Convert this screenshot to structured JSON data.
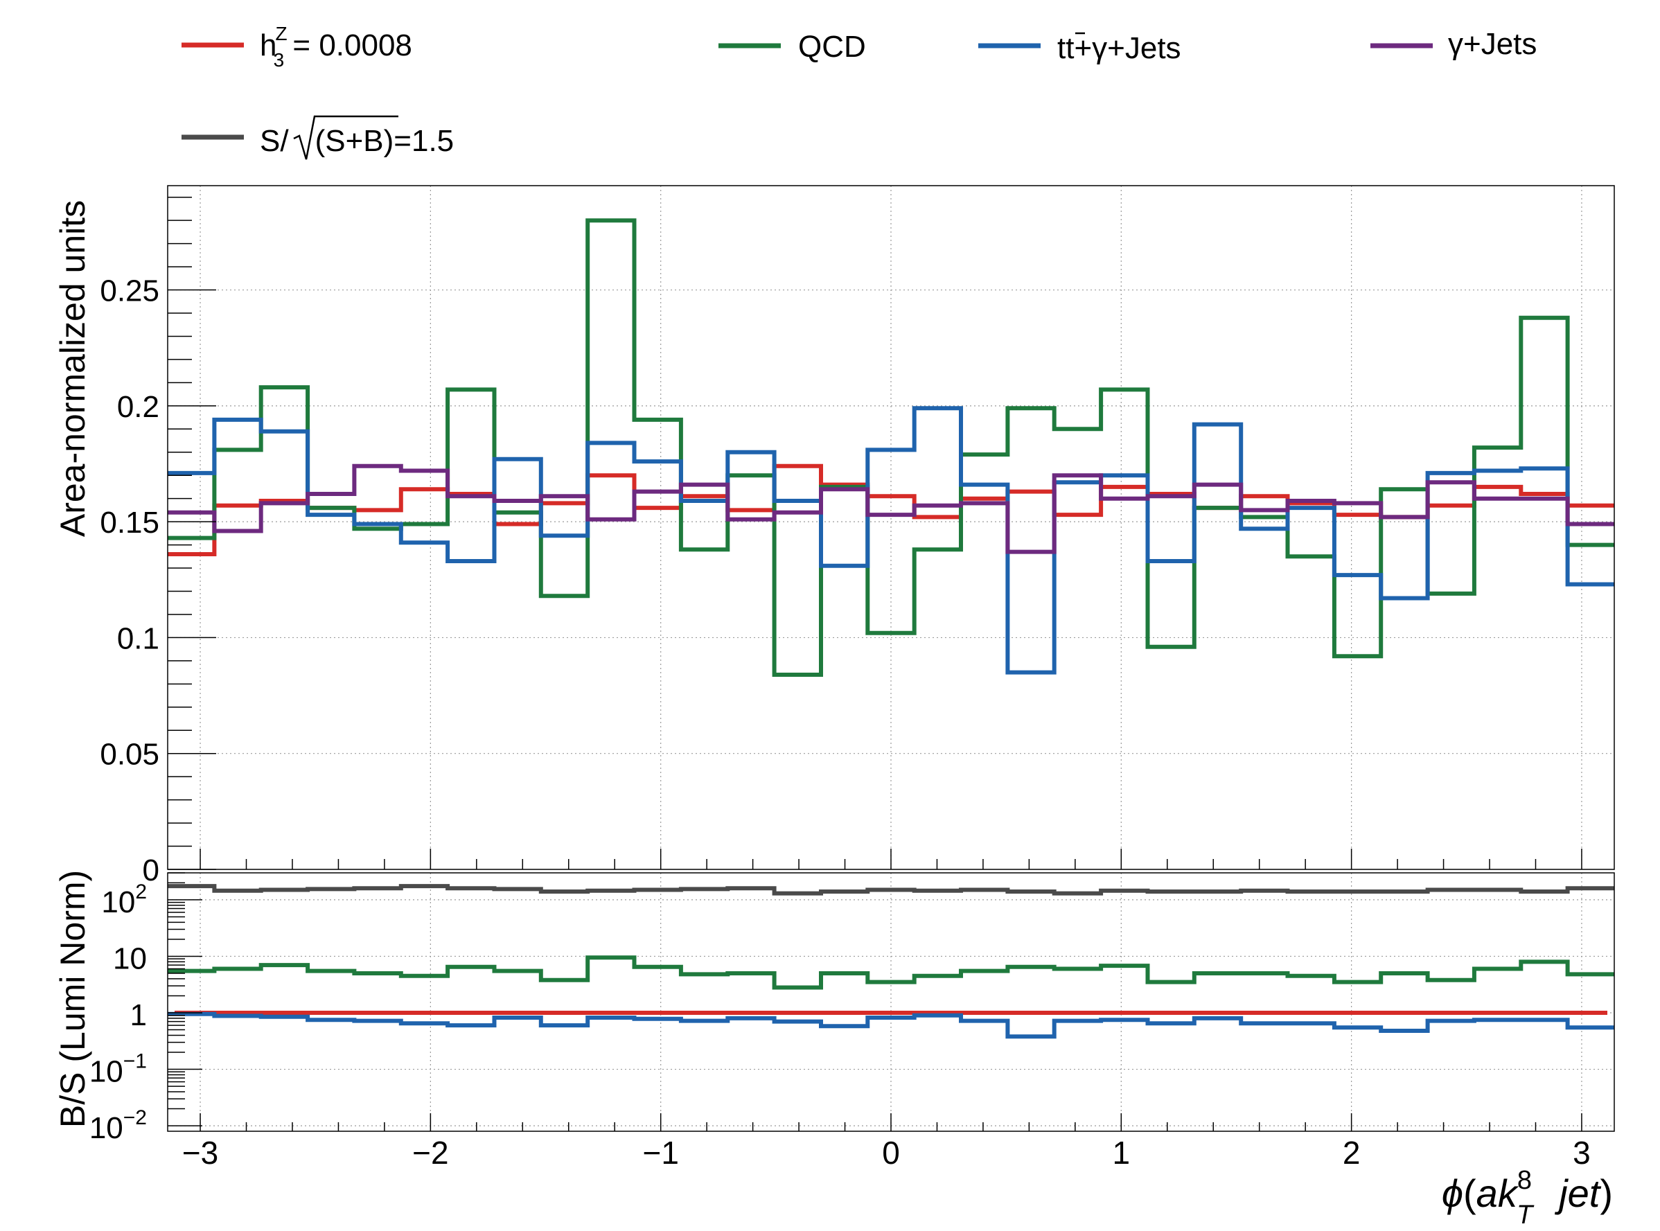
{
  "colors": {
    "signal": "#d62b27",
    "qcd": "#1f7a3d",
    "ttgamma": "#1f63ad",
    "gammajets": "#6d2a7f",
    "significance": "#4a4a4a"
  },
  "legend": {
    "signal": {
      "sym": "h",
      "sup": "Z",
      "sub": "3",
      "rest": " = 0.0008"
    },
    "qcd": "QCD",
    "ttgamma": {
      "tt": "tt",
      "rest": "+γ+Jets"
    },
    "gammajets": "γ+Jets",
    "significance": {
      "pre": "S/",
      "rad": "(S+B)",
      "post": "=1.5"
    }
  },
  "chart_data": [
    {
      "type": "line",
      "style": "step-histogram",
      "ylabel": "Area-normalized units",
      "xlim": [
        -3.14159,
        3.14159
      ],
      "ylim": [
        0,
        0.295
      ],
      "grid": true,
      "legend_placement": "top",
      "x_ticks": [
        -3,
        -2,
        -1,
        0,
        1,
        2,
        3
      ],
      "y_ticks": [
        0,
        0.05,
        0.1,
        0.15,
        0.2,
        0.25
      ],
      "y_tick_labels": [
        "0",
        "0.05",
        "0.1",
        "0.15",
        "0.2",
        "0.25"
      ],
      "n_bins": 31,
      "series": [
        {
          "name": "h3Z = 0.0008",
          "key": "signal",
          "values": [
            0.136,
            0.157,
            0.159,
            0.156,
            0.155,
            0.164,
            0.162,
            0.149,
            0.158,
            0.17,
            0.156,
            0.161,
            0.155,
            0.174,
            0.166,
            0.161,
            0.152,
            0.16,
            0.163,
            0.153,
            0.165,
            0.162,
            0.156,
            0.161,
            0.158,
            0.153,
            0.152,
            0.157,
            0.165,
            0.162,
            0.157
          ]
        },
        {
          "name": "QCD",
          "key": "qcd",
          "values": [
            0.143,
            0.181,
            0.208,
            0.156,
            0.147,
            0.149,
            0.207,
            0.154,
            0.118,
            0.28,
            0.194,
            0.138,
            0.17,
            0.084,
            0.165,
            0.102,
            0.138,
            0.179,
            0.199,
            0.19,
            0.207,
            0.096,
            0.156,
            0.152,
            0.135,
            0.092,
            0.164,
            0.119,
            0.182,
            0.238,
            0.14
          ]
        },
        {
          "name": "tt+γ+Jets",
          "key": "ttgamma",
          "values": [
            0.171,
            0.194,
            0.189,
            0.153,
            0.149,
            0.141,
            0.133,
            0.177,
            0.144,
            0.184,
            0.176,
            0.159,
            0.18,
            0.159,
            0.131,
            0.181,
            0.199,
            0.166,
            0.085,
            0.167,
            0.17,
            0.133,
            0.192,
            0.147,
            0.156,
            0.127,
            0.117,
            0.171,
            0.172,
            0.173,
            0.123
          ]
        },
        {
          "name": "γ+Jets",
          "key": "gammajets",
          "values": [
            0.154,
            0.146,
            0.158,
            0.162,
            0.174,
            0.172,
            0.161,
            0.159,
            0.161,
            0.151,
            0.163,
            0.166,
            0.151,
            0.154,
            0.164,
            0.153,
            0.157,
            0.158,
            0.137,
            0.17,
            0.16,
            0.161,
            0.166,
            0.155,
            0.159,
            0.158,
            0.152,
            0.167,
            0.16,
            0.16,
            0.149
          ]
        }
      ]
    },
    {
      "type": "line",
      "style": "step-histogram",
      "ylabel": "B/S (Lumi Norm)",
      "xlabel": {
        "phi": "ϕ",
        "open": "(",
        "ak": "ak",
        "sup": "8",
        "sub": "T",
        "jet": "jet",
        "close": ")"
      },
      "xlim": [
        -3.14159,
        3.14159
      ],
      "ylim": [
        0.008,
        300
      ],
      "log_y": true,
      "grid": true,
      "x_ticks": [
        -3,
        -2,
        -1,
        0,
        1,
        2,
        3
      ],
      "x_tick_labels": [
        "−3",
        "−2",
        "−1",
        "0",
        "1",
        "2",
        "3"
      ],
      "y_ticks": [
        {
          "value": 0.01,
          "base": "10",
          "exp": "−2"
        },
        {
          "value": 0.1,
          "base": "10",
          "exp": "−1"
        },
        {
          "value": 1,
          "base": "1",
          "exp": ""
        },
        {
          "value": 10,
          "base": "10",
          "exp": ""
        },
        {
          "value": 100,
          "base": "10",
          "exp": "2"
        }
      ],
      "n_bins": 31,
      "series": [
        {
          "key": "significance",
          "values": [
            175,
            145,
            150,
            155,
            160,
            175,
            160,
            155,
            140,
            145,
            150,
            155,
            160,
            130,
            140,
            150,
            145,
            150,
            140,
            130,
            145,
            140,
            140,
            145,
            140,
            140,
            140,
            150,
            150,
            140,
            160
          ]
        },
        {
          "key": "qcd",
          "values": [
            5.5,
            6.0,
            7.0,
            5.5,
            5.0,
            4.5,
            6.5,
            5.5,
            3.8,
            9.5,
            6.5,
            4.8,
            5.0,
            2.8,
            5.0,
            3.5,
            4.5,
            5.5,
            6.5,
            6.0,
            6.8,
            3.5,
            5.0,
            5.0,
            4.5,
            3.5,
            5.0,
            3.8,
            6.0,
            8.0,
            4.8
          ]
        },
        {
          "key": "signal",
          "values": [
            1,
            1,
            1,
            1,
            1,
            1,
            1,
            1,
            1,
            1,
            1,
            1,
            1,
            1,
            1,
            1,
            1,
            1,
            1,
            1,
            1,
            1,
            1,
            1,
            1,
            1,
            1,
            1,
            1,
            1,
            1
          ]
        },
        {
          "key": "ttgamma",
          "values": [
            0.95,
            0.88,
            0.85,
            0.75,
            0.72,
            0.65,
            0.6,
            0.82,
            0.6,
            0.82,
            0.78,
            0.72,
            0.8,
            0.7,
            0.58,
            0.82,
            0.9,
            0.72,
            0.38,
            0.72,
            0.75,
            0.65,
            0.8,
            0.65,
            0.65,
            0.55,
            0.48,
            0.72,
            0.75,
            0.75,
            0.55
          ]
        }
      ]
    }
  ]
}
